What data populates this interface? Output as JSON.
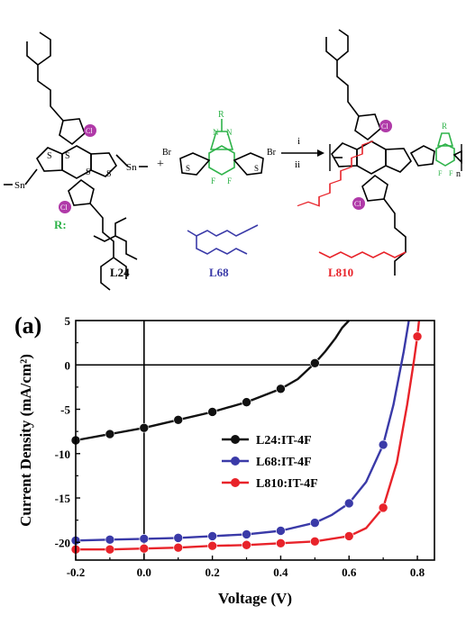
{
  "scheme": {
    "sn_label": "Sn",
    "br_label": "Br",
    "s_label": "S",
    "n_label": "N",
    "f_label": "F",
    "cl_label": "Cl",
    "r_label": "R",
    "r_colon": "R:",
    "plus": "+",
    "step_i": "i",
    "step_ii": "ii",
    "repeat_n": "n",
    "side_chains": [
      {
        "name": "L24",
        "color": "#000000"
      },
      {
        "name": "L68",
        "color": "#3a3aa8"
      },
      {
        "name": "L810",
        "color": "#e8232a"
      }
    ],
    "accent_green": "#2fb34a",
    "cl_color": "#b03aa8"
  },
  "panel_label": "(a)",
  "chart_data": {
    "type": "line",
    "xlabel": "Voltage (V)",
    "ylabel": "Current Density (mA/cm²)",
    "xlim": [
      -0.2,
      0.85
    ],
    "ylim": [
      -22,
      5
    ],
    "x_ticks": [
      -0.2,
      0.0,
      0.2,
      0.4,
      0.6,
      0.8
    ],
    "x_tick_labels": [
      "-0.2",
      "0.0",
      "0.2",
      "0.4",
      "0.6",
      "0.8"
    ],
    "y_ticks": [
      5,
      0,
      -5,
      -10,
      -15,
      -20
    ],
    "y_tick_labels": [
      "5",
      "0",
      "-5",
      "-10",
      "-15",
      "-20"
    ],
    "legend_position": "center-right",
    "series": [
      {
        "name": "L24:IT-4F",
        "color": "#111111",
        "x": [
          -0.2,
          -0.1,
          0.0,
          0.1,
          0.2,
          0.3,
          0.4,
          0.5
        ],
        "y": [
          -8.5,
          -7.8,
          -7.1,
          -6.2,
          -5.3,
          -4.2,
          -2.7,
          0.2
        ],
        "curve_x": [
          -0.2,
          -0.1,
          0.0,
          0.1,
          0.2,
          0.3,
          0.4,
          0.45,
          0.5,
          0.53,
          0.56,
          0.58,
          0.6
        ],
        "curve_y": [
          -8.5,
          -7.8,
          -7.1,
          -6.2,
          -5.3,
          -4.2,
          -2.7,
          -1.6,
          0.2,
          1.5,
          3.0,
          4.2,
          5.0
        ]
      },
      {
        "name": "L68:IT-4F",
        "color": "#3a3aa8",
        "x": [
          -0.2,
          -0.1,
          0.0,
          0.1,
          0.2,
          0.3,
          0.4,
          0.5,
          0.6,
          0.7
        ],
        "y": [
          -19.8,
          -19.7,
          -19.6,
          -19.5,
          -19.3,
          -19.1,
          -18.7,
          -17.8,
          -15.6,
          -9.0
        ],
        "curve_x": [
          -0.2,
          -0.1,
          0.0,
          0.1,
          0.2,
          0.3,
          0.4,
          0.5,
          0.55,
          0.6,
          0.65,
          0.7,
          0.73,
          0.76,
          0.775
        ],
        "curve_y": [
          -19.8,
          -19.7,
          -19.6,
          -19.5,
          -19.3,
          -19.1,
          -18.7,
          -17.8,
          -16.9,
          -15.6,
          -13.2,
          -9.0,
          -4.5,
          1.5,
          5.0
        ]
      },
      {
        "name": "L810:IT-4F",
        "color": "#e8232a",
        "x": [
          -0.2,
          -0.1,
          0.0,
          0.1,
          0.2,
          0.3,
          0.4,
          0.5,
          0.6,
          0.7,
          0.8
        ],
        "y": [
          -20.8,
          -20.8,
          -20.7,
          -20.6,
          -20.4,
          -20.3,
          -20.1,
          -19.9,
          -19.3,
          -16.1,
          3.2
        ],
        "curve_x": [
          -0.2,
          -0.1,
          0.0,
          0.1,
          0.2,
          0.3,
          0.4,
          0.5,
          0.6,
          0.65,
          0.7,
          0.74,
          0.77,
          0.79,
          0.8,
          0.805
        ],
        "curve_y": [
          -20.8,
          -20.8,
          -20.7,
          -20.6,
          -20.4,
          -20.3,
          -20.1,
          -19.9,
          -19.3,
          -18.4,
          -16.1,
          -11.0,
          -4.5,
          0.5,
          3.2,
          5.0
        ]
      }
    ]
  }
}
